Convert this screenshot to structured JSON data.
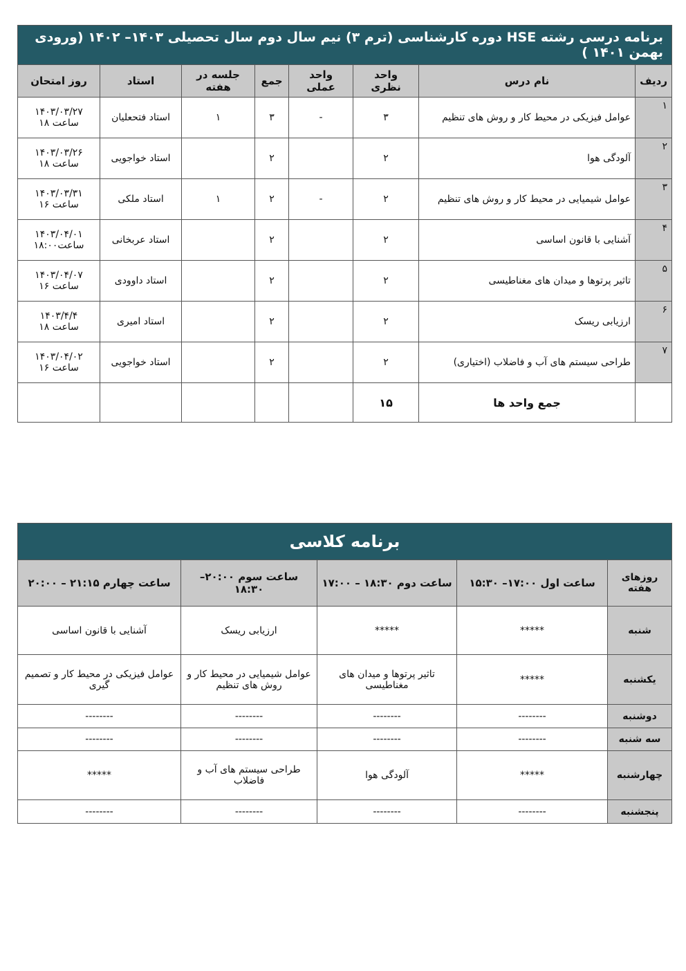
{
  "table1": {
    "title": "برنامه درسی رشته  HSE  دوره   کارشناسی (ترم ۳)     نیم سال دوم سال تحصیلی ۱۴۰۳– ۱۴۰۲ (ورودی بهمن ۱۴۰۱ )",
    "headers": [
      "ردیف",
      "نام درس",
      "واحد نظری",
      "واحد عملی",
      "جمع",
      "جلسه در هفته",
      "استاد",
      "روز امتحان"
    ],
    "rows": [
      {
        "no": "۱",
        "course": "عوامل فیزیکی در محیط کار و روش های تنظیم",
        "theory": "۳",
        "practical": "-",
        "total": "۳",
        "sessions": "۱",
        "teacher": "استاد فتحعلیان",
        "exam_date": "۱۴۰۳/۰۳/۲۷",
        "exam_time": "ساعت ۱۸"
      },
      {
        "no": "۲",
        "course": "آلودگی هوا",
        "theory": "۲",
        "practical": "",
        "total": "۲",
        "sessions": "",
        "teacher": "استاد خواجویی",
        "exam_date": "۱۴۰۳/۰۳/۲۶",
        "exam_time": "ساعت ۱۸"
      },
      {
        "no": "۳",
        "course": "عوامل شیمیایی در محیط کار و روش های تنظیم",
        "theory": "۲",
        "practical": "-",
        "total": "۲",
        "sessions": "۱",
        "teacher": "استاد ملکی",
        "exam_date": "۱۴۰۳/۰۳/۳۱",
        "exam_time": "ساعت ۱۶"
      },
      {
        "no": "۴",
        "course": "آشنایی با قانون اساسی",
        "theory": "۲",
        "practical": "",
        "total": "۲",
        "sessions": "",
        "teacher": "استاد عربخانی",
        "exam_date": "۱۴۰۳/۰۴/۰۱",
        "exam_time": "ساعت۱۸:۰۰"
      },
      {
        "no": "۵",
        "course": "تاثیر پرتوها و میدان های مغناطیسی",
        "theory": "۲",
        "practical": "",
        "total": "۲",
        "sessions": "",
        "teacher": "استاد داوودی",
        "exam_date": "۱۴۰۳/۰۴/۰۷",
        "exam_time": "ساعت ۱۶"
      },
      {
        "no": "۶",
        "course": "ارزیابی ریسک",
        "theory": "۲",
        "practical": "",
        "total": "۲",
        "sessions": "",
        "teacher": "استاد امیری",
        "exam_date": "۱۴۰۳/۴/۴",
        "exam_time": "ساعت ۱۸"
      },
      {
        "no": "۷",
        "course": "طراحی سیستم های آب و فاضلاب (اختیاری)",
        "theory": "۲",
        "practical": "",
        "total": "۲",
        "sessions": "",
        "teacher": "استاد خواجویی",
        "exam_date": "۱۴۰۳/۰۴/۰۲",
        "exam_time": "ساعت ۱۶"
      }
    ],
    "total_label": "جمع واحد ها",
    "total_value": "۱۵"
  },
  "table2": {
    "title": "برنامه کلاسی",
    "headers": [
      "روزهای هفته",
      "ساعت اول ۱۷:۰۰– ۱۵:۳۰",
      "ساعت دوم ۱۸:۳۰ – ۱۷:۰۰",
      "ساعت سوم ۲۰:۰۰– ۱۸:۳۰",
      "ساعت چهارم ۲۱:۱۵ – ۲۰:۰۰"
    ],
    "rows": [
      {
        "day": "شنبه",
        "cells": [
          "*****",
          "*****",
          "ارزیابی ریسک",
          "آشنایی با قانون اساسی"
        ]
      },
      {
        "day": "یکشنبه",
        "cells": [
          "*****",
          "تاثیر پرتوها و میدان های مغناطیسی",
          "عوامل شیمیایی در محیط کار و روش های تنظیم",
          "عوامل فیزیکی در محیط کار و تصمیم گیری"
        ]
      },
      {
        "day": "دوشنبه",
        "cells": [
          "--------",
          "--------",
          "--------",
          "--------"
        ]
      },
      {
        "day": "سه شنبه",
        "cells": [
          "--------",
          "--------",
          "--------",
          "--------"
        ]
      },
      {
        "day": "چهارشنبه",
        "cells": [
          "*****",
          "آلودگی هوا",
          "طراحی سیستم های آب و فاضلاب",
          "*****"
        ]
      },
      {
        "day": "پنجشنبه",
        "cells": [
          "--------",
          "--------",
          "--------",
          "--------"
        ]
      }
    ]
  },
  "colors": {
    "header_bg": "#245a66",
    "subheader_bg": "#c9c9c9"
  }
}
